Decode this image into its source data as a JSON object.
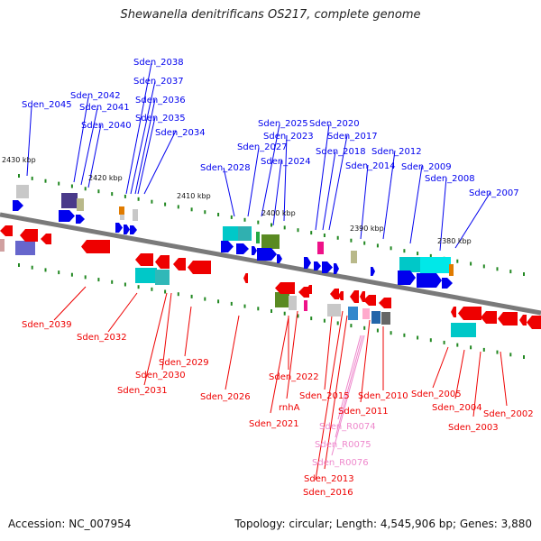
{
  "title": "Shewanella denitrificans OS217, complete genome",
  "accession_label": "Accession: NC_007954",
  "summary": "Topology: circular; Length: 4,545,906 bp; Genes: 3,880",
  "colors": {
    "backbone": "#707070",
    "forward_gene": "#0000ee",
    "reverse_gene": "#ee0000",
    "rna_gene": "#ee88cc",
    "tick": "#228822"
  },
  "ruler_labels": [
    "2430 kbp",
    "2420 kbp",
    "2410 kbp",
    "2400 kbp",
    "2390 kbp",
    "2380 kbp"
  ],
  "forward_genes": [
    "Sden_2045",
    "Sden_2042",
    "Sden_2041",
    "Sden_2040",
    "Sden_2038",
    "Sden_2037",
    "Sden_2036",
    "Sden_2035",
    "Sden_2034",
    "Sden_2028",
    "Sden_2027",
    "Sden_2025",
    "Sden_2024",
    "Sden_2023",
    "Sden_2020",
    "Sden_2018",
    "Sden_2017",
    "Sden_2014",
    "Sden_2012",
    "Sden_2009",
    "Sden_2008",
    "Sden_2007"
  ],
  "reverse_genes": [
    "Sden_2039",
    "Sden_2032",
    "Sden_2031",
    "Sden_2030",
    "Sden_2029",
    "Sden_2026",
    "Sden_2022",
    "rnhA",
    "Sden_2021",
    "Sden_2016",
    "Sden_2015",
    "Sden_2013",
    "Sden_2011",
    "Sden_2010",
    "Sden_2005",
    "Sden_2004",
    "Sden_2003",
    "Sden_2002"
  ],
  "rna_genes": [
    "Sden_R0074",
    "Sden_R0075",
    "Sden_R0076"
  ]
}
